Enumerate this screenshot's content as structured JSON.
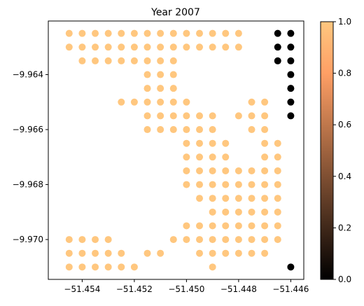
{
  "chart_data": {
    "type": "scatter",
    "title": "Year 2007",
    "xlabel": "",
    "ylabel": "",
    "xlim": [
      -51.4553,
      -51.4455
    ],
    "ylim": [
      -9.97145,
      -9.96205
    ],
    "x_ticks": [
      -51.454,
      -51.452,
      -51.45,
      -51.448,
      -51.446
    ],
    "x_tick_labels": [
      "−51.454",
      "−51.452",
      "−51.450",
      "−51.448",
      "−51.446"
    ],
    "y_ticks": [
      -9.964,
      -9.966,
      -9.968,
      -9.97
    ],
    "y_tick_labels": [
      "−9.964",
      "−9.966",
      "−9.968",
      "−9.970"
    ],
    "grid": false,
    "colorbar": {
      "label": "",
      "range": [
        0,
        1
      ],
      "ticks": [
        0.0,
        0.2,
        0.4,
        0.6,
        0.8,
        1.0
      ],
      "tick_labels": [
        "0.0",
        "0.2",
        "0.4",
        "0.6",
        "0.8",
        "1.0"
      ],
      "colormap": "copper",
      "color_low": "#000000",
      "color_high": "#ffc77f"
    },
    "x_grid": [
      -51.4545,
      -51.454,
      -51.4535,
      -51.453,
      -51.4525,
      -51.452,
      -51.4515,
      -51.451,
      -51.4505,
      -51.45,
      -51.4495,
      -51.449,
      -51.4485,
      -51.448,
      -51.4475,
      -51.447,
      -51.4465,
      -51.446
    ],
    "y_grid": [
      -9.9625,
      -9.963,
      -9.9635,
      -9.964,
      -9.9645,
      -9.965,
      -9.9655,
      -9.966,
      -9.9665,
      -9.967,
      -9.9675,
      -9.968,
      -9.9685,
      -9.969,
      -9.9695,
      -9.97,
      -9.9705,
      -9.971
    ],
    "rows": [
      {
        "y": -9.9625,
        "cols": [
          0,
          1,
          2,
          3,
          4,
          5,
          6,
          7,
          8,
          9,
          10,
          11,
          12,
          13
        ],
        "value": 1
      },
      {
        "y": -9.9625,
        "cols": [
          16,
          17
        ],
        "value": 0
      },
      {
        "y": -9.963,
        "cols": [
          0,
          1,
          2,
          3,
          4,
          5,
          6,
          7,
          8,
          9,
          10,
          11,
          12,
          13
        ],
        "value": 1
      },
      {
        "y": -9.963,
        "cols": [
          16,
          17
        ],
        "value": 0
      },
      {
        "y": -9.9635,
        "cols": [
          1,
          2,
          3,
          4,
          5,
          6,
          7,
          8
        ],
        "value": 1
      },
      {
        "y": -9.9635,
        "cols": [
          16,
          17
        ],
        "value": 0
      },
      {
        "y": -9.964,
        "cols": [
          6,
          7,
          8
        ],
        "value": 1
      },
      {
        "y": -9.964,
        "cols": [
          17
        ],
        "value": 0
      },
      {
        "y": -9.9645,
        "cols": [
          6,
          7,
          8
        ],
        "value": 1
      },
      {
        "y": -9.9645,
        "cols": [
          17
        ],
        "value": 0
      },
      {
        "y": -9.965,
        "cols": [
          4,
          5,
          6,
          7,
          8,
          9,
          14,
          15
        ],
        "value": 1
      },
      {
        "y": -9.965,
        "cols": [
          17
        ],
        "value": 0
      },
      {
        "y": -9.9655,
        "cols": [
          6,
          7,
          8,
          9,
          10,
          11,
          13,
          14,
          15
        ],
        "value": 1
      },
      {
        "y": -9.9655,
        "cols": [
          17
        ],
        "value": 0
      },
      {
        "y": -9.966,
        "cols": [
          6,
          7,
          8,
          9,
          10,
          11,
          14,
          15
        ],
        "value": 1
      },
      {
        "y": -9.9665,
        "cols": [
          9,
          10,
          11,
          12,
          15,
          16
        ],
        "value": 1
      },
      {
        "y": -9.967,
        "cols": [
          9,
          10,
          11,
          12,
          15,
          16
        ],
        "value": 1
      },
      {
        "y": -9.9675,
        "cols": [
          9,
          10,
          11,
          12,
          13,
          14,
          15,
          16
        ],
        "value": 1
      },
      {
        "y": -9.968,
        "cols": [
          9,
          10,
          11,
          12,
          13,
          14,
          15,
          16
        ],
        "value": 1
      },
      {
        "y": -9.9685,
        "cols": [
          10,
          11,
          12,
          13,
          14,
          15,
          16
        ],
        "value": 1
      },
      {
        "y": -9.969,
        "cols": [
          11,
          12,
          13,
          14,
          15,
          16
        ],
        "value": 1
      },
      {
        "y": -9.9695,
        "cols": [
          9,
          10,
          11,
          12,
          13,
          14,
          15,
          16
        ],
        "value": 1
      },
      {
        "y": -9.97,
        "cols": [
          0,
          1,
          2,
          3,
          8,
          9,
          10,
          11,
          12,
          13,
          14,
          15,
          16
        ],
        "value": 1
      },
      {
        "y": -9.9705,
        "cols": [
          0,
          1,
          2,
          3,
          4,
          6,
          7,
          10,
          11,
          12,
          13,
          14,
          15
        ],
        "value": 1
      },
      {
        "y": -9.971,
        "cols": [
          0,
          1,
          2,
          3,
          4,
          5,
          11
        ],
        "value": 1
      },
      {
        "y": -9.971,
        "cols": [
          17
        ],
        "value": 0
      }
    ]
  }
}
